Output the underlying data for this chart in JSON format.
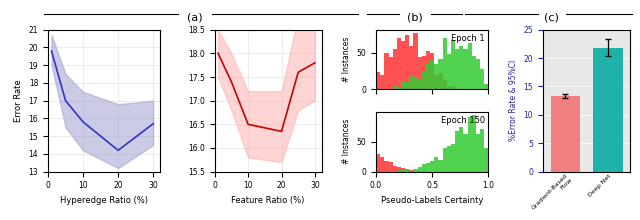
{
  "panel_a_label": "(a)",
  "panel_b_label": "(b)",
  "panel_c_label": "(c)",
  "blue_x": [
    1,
    5,
    10,
    20,
    30
  ],
  "blue_mean": [
    19.8,
    17.0,
    15.8,
    14.2,
    15.7
  ],
  "blue_upper": [
    20.7,
    18.5,
    17.5,
    16.8,
    17.0
  ],
  "blue_lower": [
    19.0,
    15.5,
    14.2,
    13.2,
    14.5
  ],
  "blue_line_color": "#3333cc",
  "blue_fill_color": "#9999cc",
  "blue_fill_alpha": 0.5,
  "blue_xlabel": "Hyperedge Ratio (%)",
  "blue_ylabel": "Error Rate",
  "blue_ylim": [
    13,
    21
  ],
  "blue_yticks": [
    13,
    14,
    15,
    16,
    17,
    18,
    19,
    20,
    21
  ],
  "blue_xticks": [
    0,
    10,
    20,
    30
  ],
  "red_x": [
    1,
    5,
    10,
    20,
    25,
    30
  ],
  "red_mean": [
    18.0,
    17.4,
    16.5,
    16.35,
    17.6,
    17.8
  ],
  "red_upper": [
    18.5,
    18.0,
    17.2,
    17.2,
    18.8,
    19.0
  ],
  "red_lower": [
    17.5,
    16.8,
    15.8,
    15.7,
    16.8,
    17.0
  ],
  "red_line_color": "#cc0000",
  "red_fill_color": "#ffaaaa",
  "red_fill_alpha": 0.5,
  "red_xlabel": "Feature Ratio (%)",
  "red_ylim": [
    15.5,
    18.5
  ],
  "red_yticks": [
    15.5,
    16.0,
    16.5,
    17.0,
    17.5,
    18.0,
    18.5
  ],
  "red_xticks": [
    0,
    10,
    20,
    30
  ],
  "hist_xlabel": "Pseudo-Labels Certainty",
  "hist_ylabel": "# Instances",
  "hist_epoch1_label": "Epoch 1",
  "hist_epoch2_label": "Epoch 150",
  "hist_red_color": "#ff3333",
  "hist_green_color": "#33cc33",
  "hist_red_alpha": 0.85,
  "hist_green_alpha": 0.85,
  "bar_categories": [
    "Gradient-Based\nFlow",
    "Deep Net"
  ],
  "bar_values": [
    13.3,
    21.8
  ],
  "bar_errors": [
    0.4,
    1.5
  ],
  "bar_colors": [
    "#f08080",
    "#20b2aa"
  ],
  "bar_ylabel": "%Error Rate & 95%CI",
  "bar_ylim": [
    0,
    25
  ],
  "bar_yticks": [
    0,
    5,
    10,
    15,
    20,
    25
  ],
  "bar_bg_color": "#e8e8e8"
}
